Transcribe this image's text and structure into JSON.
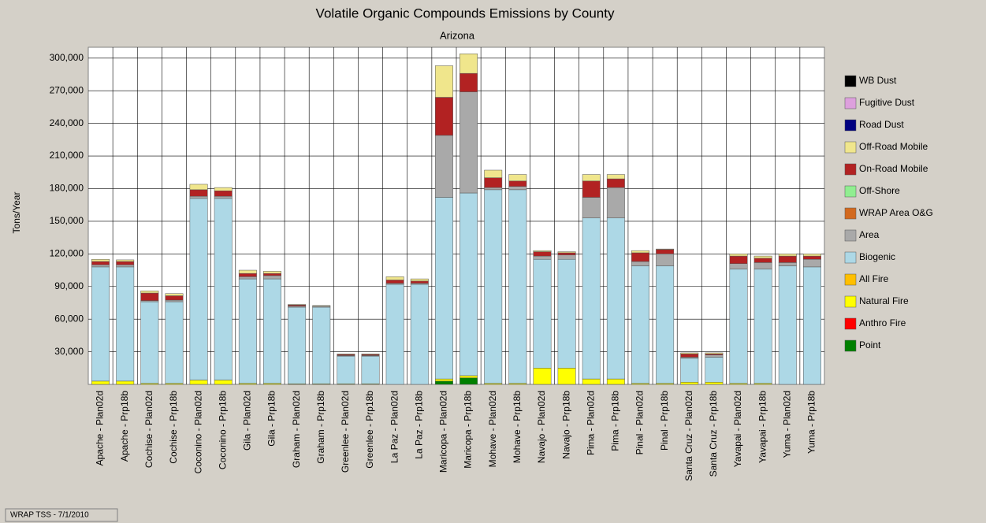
{
  "chart_data": {
    "type": "stacked_bar",
    "title": "Volatile Organic Compounds Emissions by County",
    "subtitle": "Arizona",
    "y_label": "Tons/Year",
    "footer": "WRAP TSS - 7/1/2010",
    "categories": [
      "Apache - Plan02d",
      "Apache - Prp18b",
      "Cochise - Plan02d",
      "Cochise - Prp18b",
      "Coconino - Plan02d",
      "Coconino - Prp18b",
      "Gila - Plan02d",
      "Gila - Prp18b",
      "Graham - Plan02d",
      "Graham - Prp18b",
      "Greenlee - Plan02d",
      "Greenlee - Prp18b",
      "La Paz - Plan02d",
      "La Paz - Prp18b",
      "Maricopa - Plan02d",
      "Maricopa - Prp18b",
      "Mohave - Plan02d",
      "Mohave - Prp18b",
      "Navajo - Plan02d",
      "Navajo - Prp18b",
      "Pima - Plan02d",
      "Pima - Prp18b",
      "Pinal - Plan02d",
      "Pinal - Prp18b",
      "Santa Cruz - Plan02d",
      "Santa Cruz - Prp18b",
      "Yavapai - Plan02d",
      "Yavapai - Prp18b",
      "Yuma - Plan02d",
      "Yuma - Prp18b"
    ],
    "series": [
      {
        "name": "WB Dust",
        "color": "#000000",
        "values": [
          0,
          0,
          0,
          0,
          0,
          0,
          0,
          0,
          0,
          0,
          0,
          0,
          0,
          0,
          0,
          0,
          0,
          0,
          0,
          0,
          0,
          0,
          0,
          0,
          0,
          0,
          0,
          0,
          0,
          0
        ]
      },
      {
        "name": "Fugitive Dust",
        "color": "#dda0dd",
        "values": [
          0,
          0,
          0,
          0,
          0,
          0,
          0,
          0,
          0,
          0,
          0,
          0,
          0,
          0,
          0,
          0,
          0,
          0,
          0,
          0,
          0,
          0,
          0,
          0,
          0,
          0,
          0,
          0,
          0,
          0
        ]
      },
      {
        "name": "Road Dust",
        "color": "#000080",
        "values": [
          0,
          0,
          0,
          0,
          0,
          0,
          0,
          0,
          0,
          0,
          0,
          0,
          0,
          0,
          0,
          0,
          0,
          0,
          0,
          0,
          0,
          0,
          0,
          0,
          0,
          0,
          0,
          0,
          0,
          0
        ]
      },
      {
        "name": "Off-Road Mobile",
        "color": "#f0e68c",
        "values": [
          2000,
          1500,
          2000,
          2000,
          5000,
          3000,
          3000,
          2000,
          500,
          500,
          500,
          500,
          3000,
          2000,
          29000,
          18000,
          7000,
          6000,
          1000,
          1000,
          6000,
          4000,
          2000,
          500,
          1000,
          1000,
          2000,
          2000,
          2000,
          2000
        ]
      },
      {
        "name": "On-Road Mobile",
        "color": "#b22222",
        "values": [
          3000,
          3000,
          7000,
          4000,
          6000,
          5000,
          3000,
          2000,
          1000,
          0,
          1000,
          1000,
          3000,
          2000,
          35000,
          17000,
          9000,
          5000,
          4000,
          2000,
          15000,
          8000,
          8000,
          4000,
          3000,
          1000,
          7000,
          4000,
          6000,
          3000
        ]
      },
      {
        "name": "Off-Shore",
        "color": "#90ee90",
        "values": [
          0,
          0,
          0,
          0,
          0,
          0,
          0,
          0,
          0,
          0,
          0,
          0,
          0,
          0,
          0,
          0,
          0,
          0,
          0,
          0,
          0,
          0,
          0,
          0,
          0,
          0,
          0,
          0,
          0,
          0
        ]
      },
      {
        "name": "WRAP Area O&G",
        "color": "#d2691e",
        "values": [
          0,
          0,
          0,
          0,
          0,
          0,
          0,
          0,
          0,
          0,
          0,
          0,
          0,
          0,
          0,
          0,
          0,
          0,
          0,
          0,
          0,
          0,
          0,
          0,
          0,
          0,
          0,
          0,
          0,
          0
        ]
      },
      {
        "name": "Area",
        "color": "#a9a9a9",
        "values": [
          2000,
          2000,
          1000,
          1500,
          2000,
          2000,
          2000,
          3000,
          1000,
          1000,
          500,
          500,
          1000,
          1000,
          57000,
          93000,
          2000,
          3000,
          3000,
          4000,
          19000,
          28000,
          4000,
          11000,
          1000,
          2000,
          5000,
          6000,
          3000,
          7000
        ]
      },
      {
        "name": "Biogenic",
        "color": "#add8e6",
        "values": [
          105000,
          105000,
          75000,
          75000,
          167000,
          167000,
          96000,
          96000,
          70500,
          70500,
          25500,
          25500,
          92000,
          92000,
          167000,
          168000,
          178000,
          178000,
          100000,
          100000,
          148000,
          148000,
          108000,
          108000,
          22000,
          23000,
          105000,
          105000,
          109000,
          108000
        ]
      },
      {
        "name": "All Fire",
        "color": "#ffbf00",
        "values": [
          0,
          0,
          0,
          0,
          0,
          0,
          0,
          0,
          0,
          0,
          0,
          0,
          0,
          0,
          0,
          0,
          0,
          0,
          0,
          0,
          0,
          0,
          0,
          0,
          0,
          0,
          0,
          0,
          0,
          0
        ]
      },
      {
        "name": "Natural Fire",
        "color": "#ffff00",
        "values": [
          3000,
          3000,
          1000,
          1000,
          4000,
          4000,
          1000,
          1000,
          500,
          500,
          500,
          500,
          0,
          0,
          2000,
          2000,
          1000,
          1000,
          15000,
          15000,
          5000,
          5000,
          1000,
          1000,
          2000,
          2000,
          1000,
          1000,
          0,
          0
        ]
      },
      {
        "name": "Anthro Fire",
        "color": "#ff0000",
        "values": [
          0,
          0,
          0,
          0,
          0,
          0,
          0,
          0,
          0,
          0,
          0,
          0,
          0,
          0,
          0,
          0,
          0,
          0,
          0,
          0,
          0,
          0,
          0,
          0,
          0,
          0,
          0,
          0,
          0,
          0
        ]
      },
      {
        "name": "Point",
        "color": "#008000",
        "values": [
          0,
          0,
          0,
          0,
          0,
          0,
          0,
          0,
          0,
          0,
          0,
          0,
          0,
          0,
          3000,
          6000,
          0,
          0,
          0,
          0,
          0,
          0,
          0,
          0,
          0,
          0,
          0,
          0,
          0,
          0
        ]
      }
    ],
    "ylim": [
      0,
      310000
    ],
    "yticks": [
      {
        "value": 30000,
        "label": "30,000"
      },
      {
        "value": 60000,
        "label": "60,000"
      },
      {
        "value": 90000,
        "label": "90,000"
      },
      {
        "value": 120000,
        "label": "120,000"
      },
      {
        "value": 150000,
        "label": "150,000"
      },
      {
        "value": 180000,
        "label": "180,000"
      },
      {
        "value": 210000,
        "label": "210,000"
      },
      {
        "value": 240000,
        "label": "240,000"
      },
      {
        "value": 270000,
        "label": "270,000"
      },
      {
        "value": 300000,
        "label": "300,000"
      }
    ],
    "grid": true
  }
}
